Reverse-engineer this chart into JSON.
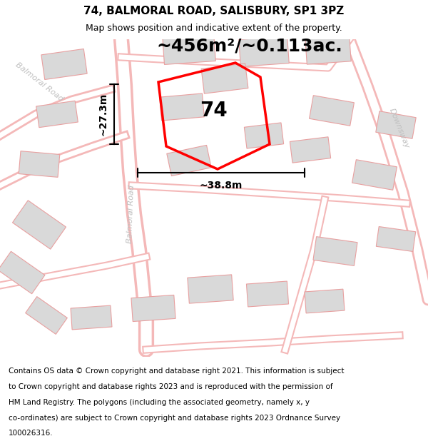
{
  "title": "74, BALMORAL ROAD, SALISBURY, SP1 3PZ",
  "subtitle": "Map shows position and indicative extent of the property.",
  "area_text": "~456m²/~0.113ac.",
  "dimension_h": "~27.3m",
  "dimension_w": "~38.8m",
  "label": "74",
  "map_bg": "#ffffff",
  "road_color": "#f4b8b8",
  "building_color": "#d9d9d9",
  "building_edge": "#e8a0a0",
  "property_color": "#ff0000",
  "title_color": "#000000",
  "footer_color": "#000000",
  "title_fontsize": 11,
  "subtitle_fontsize": 9,
  "area_fontsize": 18,
  "label_fontsize": 20,
  "dim_fontsize": 10,
  "footer_fontsize": 7.5,
  "footer_lines": [
    "Contains OS data © Crown copyright and database right 2021. This information is subject",
    "to Crown copyright and database rights 2023 and is reproduced with the permission of",
    "HM Land Registry. The polygons (including the associated geometry, namely x, y",
    "co-ordinates) are subject to Crown copyright and database rights 2023 Ordnance Survey",
    "100026316."
  ]
}
